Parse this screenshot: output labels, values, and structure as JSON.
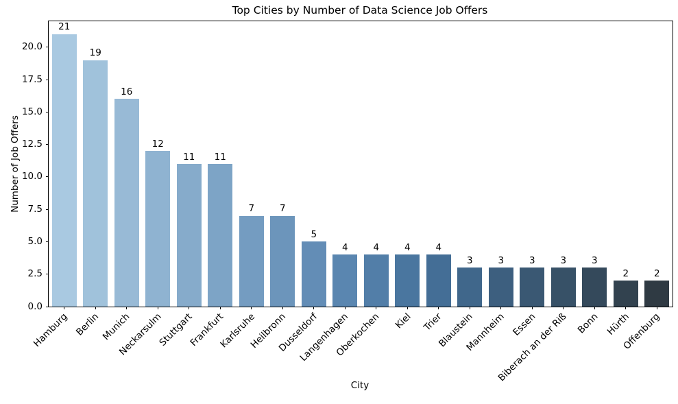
{
  "chart_data": {
    "type": "bar",
    "title": "Top Cities by Number of Data Science Job Offers",
    "xlabel": "City",
    "ylabel": "Number of Job Offers",
    "categories": [
      "Hamburg",
      "Berlin",
      "Munich",
      "Neckarsulm",
      "Stuttgart",
      "Frankfurt",
      "Karlsruhe",
      "Heilbronn",
      "Dusseldorf",
      "Langenhagen",
      "Oberkochen",
      "Kiel",
      "Trier",
      "Blaustein",
      "Mannheim",
      "Essen",
      "Biberach an der Riß",
      "Bonn",
      "Hürth",
      "Offenburg"
    ],
    "values": [
      21,
      19,
      16,
      12,
      11,
      11,
      7,
      7,
      5,
      4,
      4,
      4,
      4,
      3,
      3,
      3,
      3,
      3,
      2,
      2
    ],
    "bar_colors": [
      "#a9c9e1",
      "#a0c2db",
      "#98bad6",
      "#8fb3d1",
      "#86abcb",
      "#7da4c6",
      "#749cc1",
      "#6c95bb",
      "#638db6",
      "#5a86b0",
      "#527ea8",
      "#4a769f",
      "#446e96",
      "#40678b",
      "#3d5f7f",
      "#3a5873",
      "#375167",
      "#34495b",
      "#32424f",
      "#2f3a43"
    ],
    "yticks": [
      0.0,
      2.5,
      5.0,
      7.5,
      10.0,
      12.5,
      15.0,
      17.5,
      20.0
    ],
    "ytick_labels": [
      "0.0",
      "2.5",
      "5.0",
      "7.5",
      "10.0",
      "12.5",
      "15.0",
      "17.5",
      "20.0"
    ],
    "ylim": [
      0,
      22
    ],
    "grid": false,
    "legend": null,
    "bar_value_labels": true,
    "x_tick_rotation_deg": 45,
    "spine_color": "#000000",
    "background_color": "#ffffff"
  }
}
